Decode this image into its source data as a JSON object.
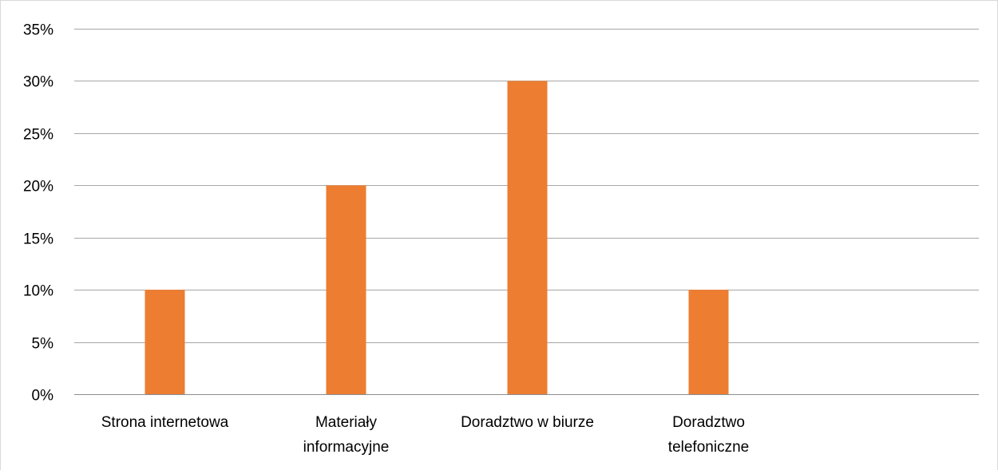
{
  "chart_data": {
    "type": "bar",
    "categories": [
      [
        "Strona internetowa"
      ],
      [
        "Materiały",
        "informacyjne"
      ],
      [
        "Doradztwo w biurze"
      ],
      [
        "Doradztwo",
        "telefoniczne"
      ]
    ],
    "values": [
      10,
      20,
      30,
      10
    ],
    "ylim": [
      0,
      35
    ],
    "yticks": [
      0,
      5,
      10,
      15,
      20,
      25,
      30,
      35
    ],
    "ytick_labels": [
      "0%",
      "5%",
      "10%",
      "15%",
      "20%",
      "25%",
      "30%",
      "35%"
    ],
    "grid": true,
    "legend": "none",
    "colors": {
      "bar": "#ED7D31",
      "grid": "#a6a6a6",
      "axis": "#8c8c8c"
    }
  }
}
